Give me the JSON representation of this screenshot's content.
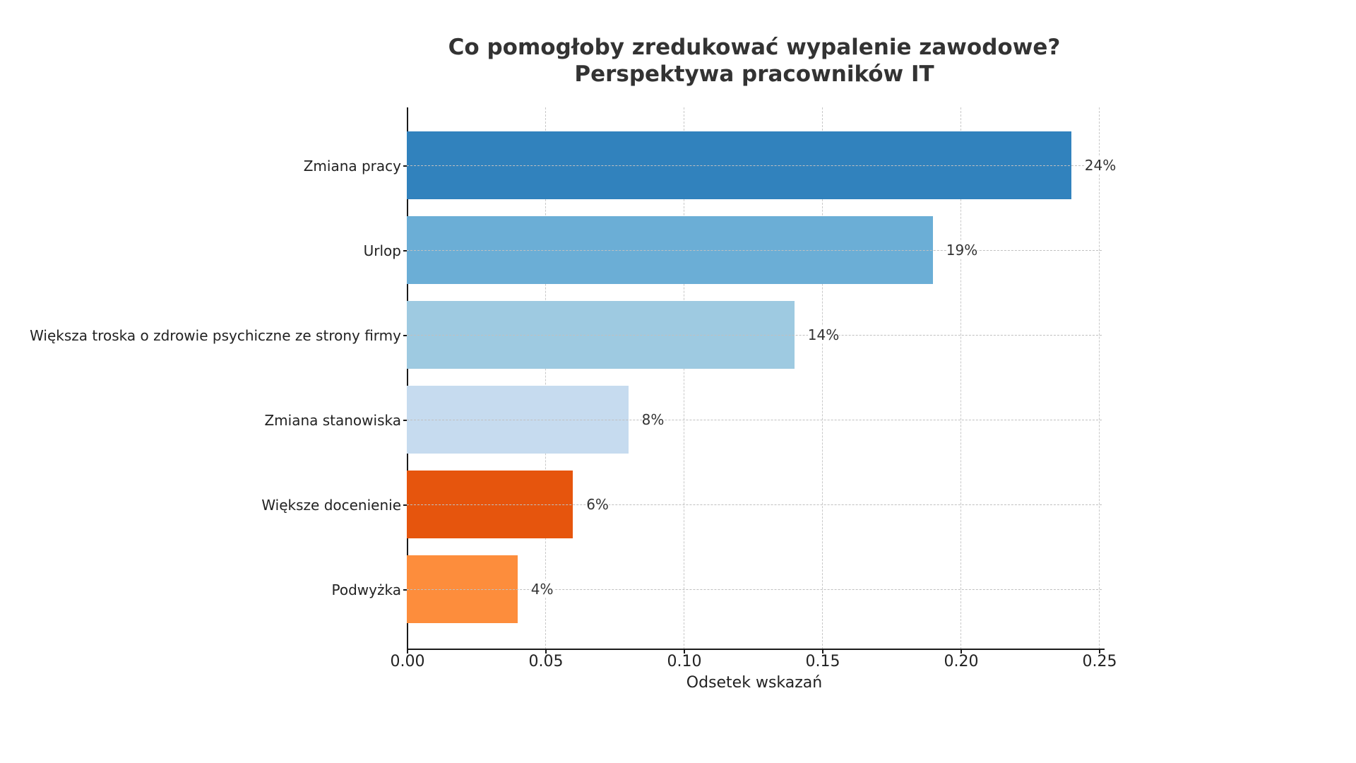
{
  "chart_data": {
    "type": "bar",
    "orientation": "horizontal",
    "title": "Co pomogłoby zredukować wypalenie zawodowe?\nPerspektywa pracowników IT",
    "title_lines": [
      "Co pomogłoby zredukować wypalenie zawodowe?",
      "Perspektywa pracowników IT"
    ],
    "xlabel": "Odsetek wskazań",
    "ylabel": "",
    "xlim": [
      0,
      0.25
    ],
    "grid": true,
    "legend": null,
    "categories": [
      "Zmiana pracy",
      "Urlop",
      "Większa troska o zdrowie psychiczne ze strony firmy",
      "Zmiana stanowiska",
      "Większe docenienie",
      "Podwyżka"
    ],
    "values": [
      0.24,
      0.19,
      0.14,
      0.08,
      0.06,
      0.04
    ],
    "value_labels": [
      "24%",
      "19%",
      "14%",
      "8%",
      "6%",
      "4%"
    ],
    "colors": [
      "#3182bd",
      "#6baed6",
      "#9ecae1",
      "#c6dbef",
      "#e6550d",
      "#fd8d3c"
    ],
    "x_ticks": [
      "0.00",
      "0.05",
      "0.10",
      "0.15",
      "0.20",
      "0.25"
    ]
  }
}
